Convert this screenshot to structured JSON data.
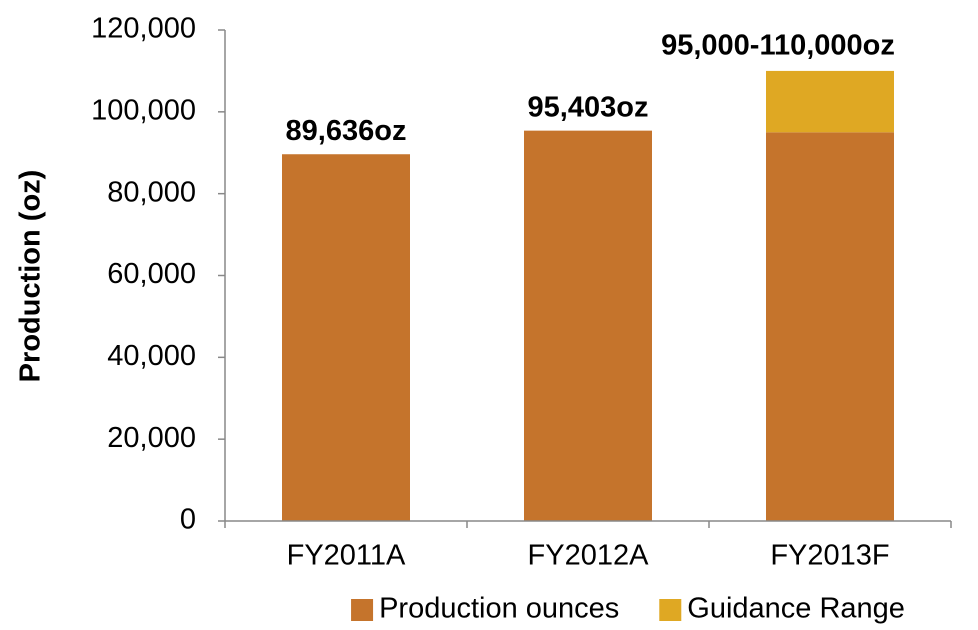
{
  "chart_data": {
    "type": "stacked_bar",
    "y_label": "Production (oz)",
    "categories": [
      "FY2011A",
      "FY2012A",
      "FY2013F"
    ],
    "series": [
      {
        "name": "Production ounces",
        "color": "#c5742c",
        "values": [
          89636,
          95403,
          95000
        ],
        "value_labels": [
          "89,636oz",
          "95,403oz",
          null
        ]
      },
      {
        "name": "Guidance Range",
        "color": "#dfa823",
        "values": [
          null,
          null,
          15000
        ]
      }
    ],
    "annotations": [
      {
        "text": "95,000-110,000oz"
      }
    ],
    "ylim": [
      0,
      120000
    ],
    "yticks": [
      0,
      {
        "value": 20000,
        "label": "20,000"
      },
      {
        "value": 40000,
        "label": "40,000"
      },
      {
        "value": 60000,
        "label": "60,000"
      },
      {
        "value": 80000,
        "label": "80,000"
      },
      {
        "value": 100000,
        "label": "100,000"
      },
      {
        "value": 120000,
        "label": "120,000"
      }
    ],
    "legend": "bottom"
  }
}
